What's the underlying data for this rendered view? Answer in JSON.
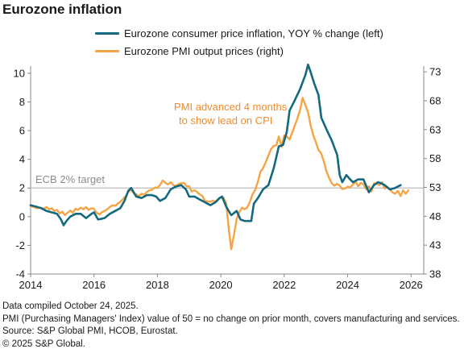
{
  "header": {
    "title": "Eurozone inflation"
  },
  "colors": {
    "cpi": "#14697f",
    "pmi": "#f5a445",
    "annotation": "#f08c2a",
    "target_label": "#8c8c8c",
    "gridline": "#bbbbbb",
    "axis": "#888888"
  },
  "chart_data": {
    "type": "line",
    "title": "Eurozone inflation",
    "x_range": [
      2014,
      2026.4
    ],
    "x_ticks": [
      "2014",
      "2016",
      "2018",
      "2020",
      "2022",
      "2024",
      "2026"
    ],
    "y_left": {
      "range": [
        -4,
        10.5
      ],
      "ticks": [
        "-4",
        "-2",
        "0",
        "2",
        "4",
        "6",
        "8",
        "10"
      ]
    },
    "y_right": {
      "range": [
        38,
        74
      ],
      "ticks": [
        "38",
        "43",
        "48",
        "53",
        "58",
        "63",
        "68",
        "73"
      ]
    },
    "reference_line": {
      "axis": "left",
      "value": 2,
      "label": "ECB 2% target"
    },
    "annotation": {
      "lines": [
        "PMI advanced 4 months",
        "to show lead on CPI"
      ]
    },
    "series": [
      {
        "name": "Eurozone consumer price inflation, YOY % change (left)",
        "axis": "left",
        "points": [
          [
            2014.0,
            0.8
          ],
          [
            2014.17,
            0.7
          ],
          [
            2014.33,
            0.6
          ],
          [
            2014.5,
            0.4
          ],
          [
            2014.67,
            0.3
          ],
          [
            2014.83,
            0.2
          ],
          [
            2014.96,
            -0.2
          ],
          [
            2015.04,
            -0.6
          ],
          [
            2015.13,
            -0.3
          ],
          [
            2015.25,
            0.0
          ],
          [
            2015.42,
            0.2
          ],
          [
            2015.58,
            0.2
          ],
          [
            2015.75,
            -0.1
          ],
          [
            2015.92,
            0.2
          ],
          [
            2016.0,
            0.3
          ],
          [
            2016.13,
            -0.2
          ],
          [
            2016.33,
            -0.1
          ],
          [
            2016.5,
            0.2
          ],
          [
            2016.67,
            0.4
          ],
          [
            2016.83,
            0.6
          ],
          [
            2016.96,
            1.1
          ],
          [
            2017.08,
            1.8
          ],
          [
            2017.17,
            2.0
          ],
          [
            2017.33,
            1.4
          ],
          [
            2017.5,
            1.3
          ],
          [
            2017.67,
            1.5
          ],
          [
            2017.83,
            1.5
          ],
          [
            2017.96,
            1.4
          ],
          [
            2018.08,
            1.1
          ],
          [
            2018.25,
            1.3
          ],
          [
            2018.42,
            1.9
          ],
          [
            2018.58,
            2.1
          ],
          [
            2018.75,
            2.2
          ],
          [
            2018.9,
            1.9
          ],
          [
            2019.0,
            1.4
          ],
          [
            2019.17,
            1.4
          ],
          [
            2019.33,
            1.2
          ],
          [
            2019.5,
            1.0
          ],
          [
            2019.67,
            0.8
          ],
          [
            2019.83,
            1.0
          ],
          [
            2019.96,
            1.3
          ],
          [
            2020.04,
            1.4
          ],
          [
            2020.17,
            0.7
          ],
          [
            2020.33,
            0.1
          ],
          [
            2020.5,
            0.4
          ],
          [
            2020.62,
            -0.2
          ],
          [
            2020.75,
            -0.3
          ],
          [
            2020.96,
            -0.3
          ],
          [
            2021.04,
            0.9
          ],
          [
            2021.17,
            1.3
          ],
          [
            2021.33,
            1.9
          ],
          [
            2021.5,
            2.2
          ],
          [
            2021.67,
            3.4
          ],
          [
            2021.83,
            4.9
          ],
          [
            2021.96,
            5.0
          ],
          [
            2022.08,
            5.9
          ],
          [
            2022.17,
            7.4
          ],
          [
            2022.33,
            8.1
          ],
          [
            2022.5,
            8.9
          ],
          [
            2022.67,
            9.9
          ],
          [
            2022.75,
            10.6
          ],
          [
            2022.83,
            10.1
          ],
          [
            2022.96,
            9.2
          ],
          [
            2023.08,
            8.5
          ],
          [
            2023.17,
            6.9
          ],
          [
            2023.33,
            6.1
          ],
          [
            2023.5,
            5.3
          ],
          [
            2023.67,
            4.3
          ],
          [
            2023.75,
            2.9
          ],
          [
            2023.83,
            2.4
          ],
          [
            2023.96,
            2.9
          ],
          [
            2024.08,
            2.6
          ],
          [
            2024.17,
            2.4
          ],
          [
            2024.33,
            2.6
          ],
          [
            2024.5,
            2.6
          ],
          [
            2024.67,
            1.7
          ],
          [
            2024.83,
            2.2
          ],
          [
            2024.96,
            2.4
          ],
          [
            2025.08,
            2.3
          ],
          [
            2025.17,
            2.2
          ],
          [
            2025.33,
            1.9
          ],
          [
            2025.5,
            2.0
          ],
          [
            2025.67,
            2.2
          ]
        ]
      },
      {
        "name": "Eurozone PMI output prices (right)",
        "axis": "right",
        "points": [
          [
            2014.0,
            49.8
          ],
          [
            2014.1,
            49.6
          ],
          [
            2014.2,
            49.4
          ],
          [
            2014.3,
            49.5
          ],
          [
            2014.42,
            49.3
          ],
          [
            2014.5,
            49.6
          ],
          [
            2014.58,
            49.2
          ],
          [
            2014.67,
            49.4
          ],
          [
            2014.75,
            48.9
          ],
          [
            2014.83,
            49.1
          ],
          [
            2014.92,
            48.5
          ],
          [
            2015.0,
            48.8
          ],
          [
            2015.08,
            48.2
          ],
          [
            2015.17,
            48.6
          ],
          [
            2015.25,
            49.0
          ],
          [
            2015.33,
            48.6
          ],
          [
            2015.42,
            49.3
          ],
          [
            2015.5,
            49.1
          ],
          [
            2015.58,
            49.5
          ],
          [
            2015.67,
            49.2
          ],
          [
            2015.75,
            49.6
          ],
          [
            2015.83,
            49.1
          ],
          [
            2015.92,
            49.4
          ],
          [
            2016.0,
            49.3
          ],
          [
            2016.08,
            48.6
          ],
          [
            2016.17,
            48.3
          ],
          [
            2016.25,
            48.7
          ],
          [
            2016.33,
            48.9
          ],
          [
            2016.42,
            49.2
          ],
          [
            2016.5,
            49.6
          ],
          [
            2016.58,
            49.9
          ],
          [
            2016.67,
            49.8
          ],
          [
            2016.75,
            50.2
          ],
          [
            2016.83,
            50.5
          ],
          [
            2016.92,
            51.0
          ],
          [
            2017.0,
            51.5
          ],
          [
            2017.08,
            52.2
          ],
          [
            2017.17,
            52.6
          ],
          [
            2017.25,
            52.0
          ],
          [
            2017.33,
            51.8
          ],
          [
            2017.42,
            51.5
          ],
          [
            2017.5,
            51.9
          ],
          [
            2017.58,
            51.7
          ],
          [
            2017.67,
            52.2
          ],
          [
            2017.75,
            52.5
          ],
          [
            2017.83,
            52.6
          ],
          [
            2017.92,
            53.0
          ],
          [
            2018.0,
            52.9
          ],
          [
            2018.08,
            53.4
          ],
          [
            2018.17,
            54.2
          ],
          [
            2018.25,
            53.8
          ],
          [
            2018.33,
            53.5
          ],
          [
            2018.42,
            53.9
          ],
          [
            2018.5,
            53.4
          ],
          [
            2018.58,
            53.2
          ],
          [
            2018.67,
            53.6
          ],
          [
            2018.75,
            53.7
          ],
          [
            2018.83,
            53.8
          ],
          [
            2018.92,
            53.2
          ],
          [
            2019.0,
            53.2
          ],
          [
            2019.08,
            52.3
          ],
          [
            2019.17,
            52.5
          ],
          [
            2019.25,
            52.2
          ],
          [
            2019.33,
            51.8
          ],
          [
            2019.42,
            51.5
          ],
          [
            2019.5,
            50.6
          ],
          [
            2019.58,
            50.6
          ],
          [
            2019.67,
            50.5
          ],
          [
            2019.75,
            50.7
          ],
          [
            2019.83,
            50.5
          ],
          [
            2019.92,
            51.0
          ],
          [
            2020.0,
            51.2
          ],
          [
            2020.08,
            51.2
          ],
          [
            2020.17,
            50.3
          ],
          [
            2020.25,
            45.8
          ],
          [
            2020.33,
            42.3
          ],
          [
            2020.42,
            45.0
          ],
          [
            2020.5,
            47.5
          ],
          [
            2020.58,
            48.7
          ],
          [
            2020.67,
            49.5
          ],
          [
            2020.75,
            49.2
          ],
          [
            2020.83,
            49.5
          ],
          [
            2020.92,
            50.5
          ],
          [
            2021.0,
            51.8
          ],
          [
            2021.08,
            52.5
          ],
          [
            2021.17,
            54.0
          ],
          [
            2021.25,
            55.7
          ],
          [
            2021.33,
            56.3
          ],
          [
            2021.42,
            57.4
          ],
          [
            2021.5,
            58.5
          ],
          [
            2021.58,
            59.6
          ],
          [
            2021.67,
            60.2
          ],
          [
            2021.75,
            60.3
          ],
          [
            2021.83,
            61.8
          ],
          [
            2021.92,
            60.0
          ],
          [
            2022.0,
            62.0
          ],
          [
            2022.08,
            61.8
          ],
          [
            2022.17,
            61.3
          ],
          [
            2022.25,
            62.5
          ],
          [
            2022.33,
            63.6
          ],
          [
            2022.42,
            65.0
          ],
          [
            2022.5,
            66.4
          ],
          [
            2022.58,
            68.5
          ],
          [
            2022.67,
            67.2
          ],
          [
            2022.75,
            66.0
          ],
          [
            2022.83,
            63.8
          ],
          [
            2022.92,
            62.0
          ],
          [
            2023.0,
            60.8
          ],
          [
            2023.08,
            59.5
          ],
          [
            2023.17,
            58.8
          ],
          [
            2023.25,
            57.5
          ],
          [
            2023.33,
            55.8
          ],
          [
            2023.42,
            54.6
          ],
          [
            2023.5,
            53.7
          ],
          [
            2023.58,
            53.3
          ],
          [
            2023.67,
            53.6
          ],
          [
            2023.75,
            53.3
          ],
          [
            2023.83,
            52.7
          ],
          [
            2023.92,
            52.8
          ],
          [
            2024.0,
            53.1
          ],
          [
            2024.08,
            53.0
          ],
          [
            2024.17,
            53.5
          ],
          [
            2024.25,
            54.0
          ],
          [
            2024.33,
            53.2
          ],
          [
            2024.42,
            53.8
          ],
          [
            2024.5,
            53.5
          ],
          [
            2024.58,
            52.7
          ],
          [
            2024.67,
            53.2
          ],
          [
            2024.75,
            52.3
          ],
          [
            2024.83,
            53.7
          ],
          [
            2024.92,
            53.6
          ],
          [
            2025.0,
            53.4
          ],
          [
            2025.08,
            53.9
          ],
          [
            2025.17,
            52.8
          ],
          [
            2025.25,
            53.1
          ],
          [
            2025.33,
            52.7
          ],
          [
            2025.42,
            52.1
          ],
          [
            2025.5,
            51.9
          ],
          [
            2025.58,
            52.4
          ],
          [
            2025.67,
            51.5
          ],
          [
            2025.75,
            52.5
          ],
          [
            2025.83,
            51.9
          ],
          [
            2025.92,
            52.5
          ]
        ]
      }
    ]
  },
  "footnotes": [
    "Data compiled October 24, 2025.",
    "PMI (Purchasing Managers' Index) value of 50 = no change on prior month, covers manufacturing and services.",
    "Source: S&P Global PMI, HCOB, Eurostat.",
    "© 2025 S&P Global."
  ]
}
